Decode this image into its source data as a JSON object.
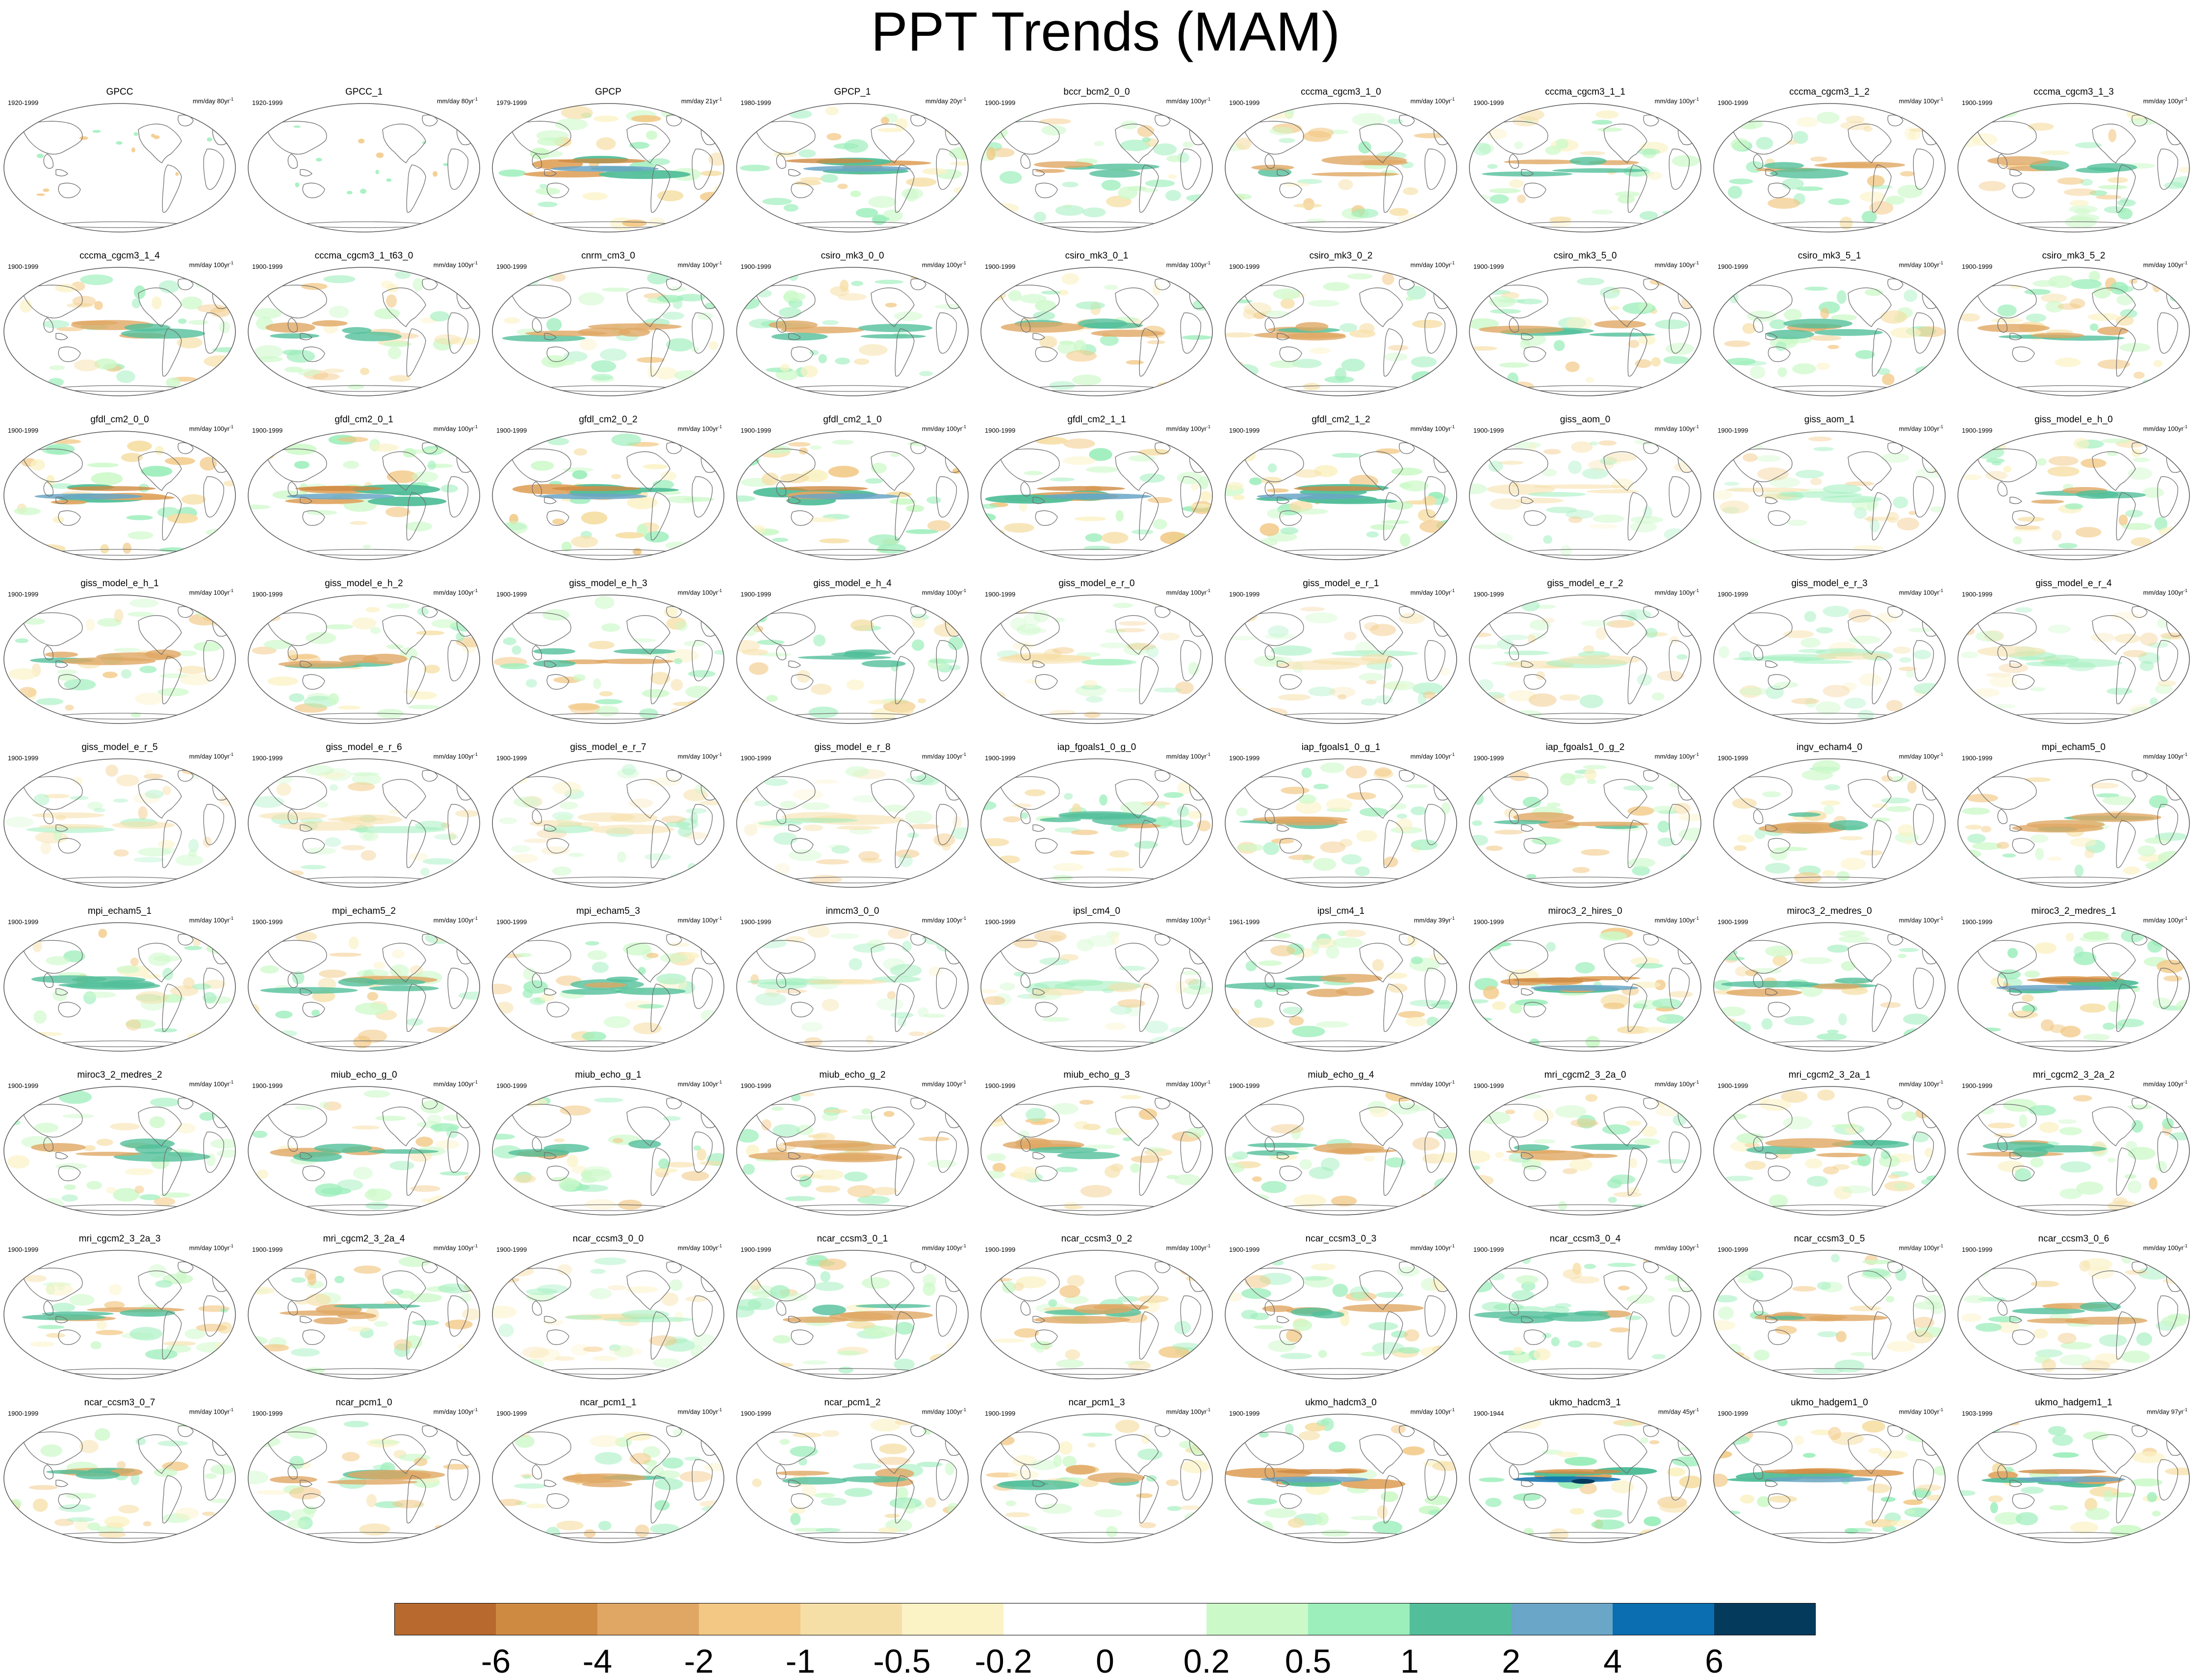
{
  "title": "PPT Trends (MAM)",
  "panels": [
    {
      "name": "GPCC",
      "period": "1920-1999",
      "units": "mm/day 80yr",
      "exp": "-1",
      "style": "sparse"
    },
    {
      "name": "GPCC_1",
      "period": "1920-1999",
      "units": "mm/day 80yr",
      "exp": "-1",
      "style": "sparse"
    },
    {
      "name": "GPCP",
      "period": "1979-1999",
      "units": "mm/day 21yr",
      "exp": "-1",
      "style": "strong"
    },
    {
      "name": "GPCP_1",
      "period": "1980-1999",
      "units": "mm/day 20yr",
      "exp": "-1",
      "style": "strong"
    },
    {
      "name": "bccr_bcm2_0_0",
      "period": "1900-1999",
      "units": "mm/day 100yr",
      "exp": "-1",
      "style": "normal"
    },
    {
      "name": "cccma_cgcm3_1_0",
      "period": "1900-1999",
      "units": "mm/day 100yr",
      "exp": "-1",
      "style": "normal"
    },
    {
      "name": "cccma_cgcm3_1_1",
      "period": "1900-1999",
      "units": "mm/day 100yr",
      "exp": "-1",
      "style": "normal"
    },
    {
      "name": "cccma_cgcm3_1_2",
      "period": "1900-1999",
      "units": "mm/day 100yr",
      "exp": "-1",
      "style": "normal"
    },
    {
      "name": "cccma_cgcm3_1_3",
      "period": "1900-1999",
      "units": "mm/day 100yr",
      "exp": "-1",
      "style": "normal"
    },
    {
      "name": "cccma_cgcm3_1_4",
      "period": "1900-1999",
      "units": "mm/day 100yr",
      "exp": "-1",
      "style": "normal"
    },
    {
      "name": "cccma_cgcm3_1_t63_0",
      "period": "1900-1999",
      "units": "mm/day 100yr",
      "exp": "-1",
      "style": "normal"
    },
    {
      "name": "cnrm_cm3_0",
      "period": "1900-1999",
      "units": "mm/day 100yr",
      "exp": "-1",
      "style": "normal"
    },
    {
      "name": "csiro_mk3_0_0",
      "period": "1900-1999",
      "units": "mm/day 100yr",
      "exp": "-1",
      "style": "normal"
    },
    {
      "name": "csiro_mk3_0_1",
      "period": "1900-1999",
      "units": "mm/day 100yr",
      "exp": "-1",
      "style": "normal"
    },
    {
      "name": "csiro_mk3_0_2",
      "period": "1900-1999",
      "units": "mm/day 100yr",
      "exp": "-1",
      "style": "normal"
    },
    {
      "name": "csiro_mk3_5_0",
      "period": "1900-1999",
      "units": "mm/day 100yr",
      "exp": "-1",
      "style": "normal"
    },
    {
      "name": "csiro_mk3_5_1",
      "period": "1900-1999",
      "units": "mm/day 100yr",
      "exp": "-1",
      "style": "normal"
    },
    {
      "name": "csiro_mk3_5_2",
      "period": "1900-1999",
      "units": "mm/day 100yr",
      "exp": "-1",
      "style": "normal"
    },
    {
      "name": "gfdl_cm2_0_0",
      "period": "1900-1999",
      "units": "mm/day 100yr",
      "exp": "-1",
      "style": "strong"
    },
    {
      "name": "gfdl_cm2_0_1",
      "period": "1900-1999",
      "units": "mm/day 100yr",
      "exp": "-1",
      "style": "strong"
    },
    {
      "name": "gfdl_cm2_0_2",
      "period": "1900-1999",
      "units": "mm/day 100yr",
      "exp": "-1",
      "style": "strong"
    },
    {
      "name": "gfdl_cm2_1_0",
      "period": "1900-1999",
      "units": "mm/day 100yr",
      "exp": "-1",
      "style": "strong"
    },
    {
      "name": "gfdl_cm2_1_1",
      "period": "1900-1999",
      "units": "mm/day 100yr",
      "exp": "-1",
      "style": "strong"
    },
    {
      "name": "gfdl_cm2_1_2",
      "period": "1900-1999",
      "units": "mm/day 100yr",
      "exp": "-1",
      "style": "strong"
    },
    {
      "name": "giss_aom_0",
      "period": "1900-1999",
      "units": "mm/day 100yr",
      "exp": "-1",
      "style": "light"
    },
    {
      "name": "giss_aom_1",
      "period": "1900-1999",
      "units": "mm/day 100yr",
      "exp": "-1",
      "style": "light"
    },
    {
      "name": "giss_model_e_h_0",
      "period": "1900-1999",
      "units": "mm/day 100yr",
      "exp": "-1",
      "style": "normal"
    },
    {
      "name": "giss_model_e_h_1",
      "period": "1900-1999",
      "units": "mm/day 100yr",
      "exp": "-1",
      "style": "normal"
    },
    {
      "name": "giss_model_e_h_2",
      "period": "1900-1999",
      "units": "mm/day 100yr",
      "exp": "-1",
      "style": "normal"
    },
    {
      "name": "giss_model_e_h_3",
      "period": "1900-1999",
      "units": "mm/day 100yr",
      "exp": "-1",
      "style": "normal"
    },
    {
      "name": "giss_model_e_h_4",
      "period": "1900-1999",
      "units": "mm/day 100yr",
      "exp": "-1",
      "style": "normal"
    },
    {
      "name": "giss_model_e_r_0",
      "period": "1900-1999",
      "units": "mm/day 100yr",
      "exp": "-1",
      "style": "light"
    },
    {
      "name": "giss_model_e_r_1",
      "period": "1900-1999",
      "units": "mm/day 100yr",
      "exp": "-1",
      "style": "light"
    },
    {
      "name": "giss_model_e_r_2",
      "period": "1900-1999",
      "units": "mm/day 100yr",
      "exp": "-1",
      "style": "light"
    },
    {
      "name": "giss_model_e_r_3",
      "period": "1900-1999",
      "units": "mm/day 100yr",
      "exp": "-1",
      "style": "light"
    },
    {
      "name": "giss_model_e_r_4",
      "period": "1900-1999",
      "units": "mm/day 100yr",
      "exp": "-1",
      "style": "light"
    },
    {
      "name": "giss_model_e_r_5",
      "period": "1900-1999",
      "units": "mm/day 100yr",
      "exp": "-1",
      "style": "light"
    },
    {
      "name": "giss_model_e_r_6",
      "period": "1900-1999",
      "units": "mm/day 100yr",
      "exp": "-1",
      "style": "light"
    },
    {
      "name": "giss_model_e_r_7",
      "period": "1900-1999",
      "units": "mm/day 100yr",
      "exp": "-1",
      "style": "light"
    },
    {
      "name": "giss_model_e_r_8",
      "period": "1900-1999",
      "units": "mm/day 100yr",
      "exp": "-1",
      "style": "light"
    },
    {
      "name": "iap_fgoals1_0_g_0",
      "period": "1900-1999",
      "units": "mm/day 100yr",
      "exp": "-1",
      "style": "normal"
    },
    {
      "name": "iap_fgoals1_0_g_1",
      "period": "1900-1999",
      "units": "mm/day 100yr",
      "exp": "-1",
      "style": "normal"
    },
    {
      "name": "iap_fgoals1_0_g_2",
      "period": "1900-1999",
      "units": "mm/day 100yr",
      "exp": "-1",
      "style": "normal"
    },
    {
      "name": "ingv_echam4_0",
      "period": "1900-1999",
      "units": "mm/day 100yr",
      "exp": "-1",
      "style": "normal"
    },
    {
      "name": "mpi_echam5_0",
      "period": "1900-1999",
      "units": "mm/day 100yr",
      "exp": "-1",
      "style": "normal"
    },
    {
      "name": "mpi_echam5_1",
      "period": "1900-1999",
      "units": "mm/day 100yr",
      "exp": "-1",
      "style": "normal"
    },
    {
      "name": "mpi_echam5_2",
      "period": "1900-1999",
      "units": "mm/day 100yr",
      "exp": "-1",
      "style": "normal"
    },
    {
      "name": "mpi_echam5_3",
      "period": "1900-1999",
      "units": "mm/day 100yr",
      "exp": "-1",
      "style": "normal"
    },
    {
      "name": "inmcm3_0_0",
      "period": "1900-1999",
      "units": "mm/day 100yr",
      "exp": "-1",
      "style": "light"
    },
    {
      "name": "ipsl_cm4_0",
      "period": "1900-1999",
      "units": "mm/day 100yr",
      "exp": "-1",
      "style": "light"
    },
    {
      "name": "ipsl_cm4_1",
      "period": "1961-1999",
      "units": "mm/day 39yr",
      "exp": "-1",
      "style": "normal"
    },
    {
      "name": "miroc3_2_hires_0",
      "period": "1900-1999",
      "units": "mm/day 100yr",
      "exp": "-1",
      "style": "strong"
    },
    {
      "name": "miroc3_2_medres_0",
      "period": "1900-1999",
      "units": "mm/day 100yr",
      "exp": "-1",
      "style": "normal"
    },
    {
      "name": "miroc3_2_medres_1",
      "period": "1900-1999",
      "units": "mm/day 100yr",
      "exp": "-1",
      "style": "strong"
    },
    {
      "name": "miroc3_2_medres_2",
      "period": "1900-1999",
      "units": "mm/day 100yr",
      "exp": "-1",
      "style": "normal"
    },
    {
      "name": "miub_echo_g_0",
      "period": "1900-1999",
      "units": "mm/day 100yr",
      "exp": "-1",
      "style": "normal"
    },
    {
      "name": "miub_echo_g_1",
      "period": "1900-1999",
      "units": "mm/day 100yr",
      "exp": "-1",
      "style": "normal"
    },
    {
      "name": "miub_echo_g_2",
      "period": "1900-1999",
      "units": "mm/day 100yr",
      "exp": "-1",
      "style": "normal"
    },
    {
      "name": "miub_echo_g_3",
      "period": "1900-1999",
      "units": "mm/day 100yr",
      "exp": "-1",
      "style": "normal"
    },
    {
      "name": "miub_echo_g_4",
      "period": "1900-1999",
      "units": "mm/day 100yr",
      "exp": "-1",
      "style": "normal"
    },
    {
      "name": "mri_cgcm2_3_2a_0",
      "period": "1900-1999",
      "units": "mm/day 100yr",
      "exp": "-1",
      "style": "normal"
    },
    {
      "name": "mri_cgcm2_3_2a_1",
      "period": "1900-1999",
      "units": "mm/day 100yr",
      "exp": "-1",
      "style": "normal"
    },
    {
      "name": "mri_cgcm2_3_2a_2",
      "period": "1900-1999",
      "units": "mm/day 100yr",
      "exp": "-1",
      "style": "normal"
    },
    {
      "name": "mri_cgcm2_3_2a_3",
      "period": "1900-1999",
      "units": "mm/day 100yr",
      "exp": "-1",
      "style": "normal"
    },
    {
      "name": "mri_cgcm2_3_2a_4",
      "period": "1900-1999",
      "units": "mm/day 100yr",
      "exp": "-1",
      "style": "normal"
    },
    {
      "name": "ncar_ccsm3_0_0",
      "period": "1900-1999",
      "units": "mm/day 100yr",
      "exp": "-1",
      "style": "light"
    },
    {
      "name": "ncar_ccsm3_0_1",
      "period": "1900-1999",
      "units": "mm/day 100yr",
      "exp": "-1",
      "style": "normal"
    },
    {
      "name": "ncar_ccsm3_0_2",
      "period": "1900-1999",
      "units": "mm/day 100yr",
      "exp": "-1",
      "style": "normal"
    },
    {
      "name": "ncar_ccsm3_0_3",
      "period": "1900-1999",
      "units": "mm/day 100yr",
      "exp": "-1",
      "style": "normal"
    },
    {
      "name": "ncar_ccsm3_0_4",
      "period": "1900-1999",
      "units": "mm/day 100yr",
      "exp": "-1",
      "style": "normal"
    },
    {
      "name": "ncar_ccsm3_0_5",
      "period": "1900-1999",
      "units": "mm/day 100yr",
      "exp": "-1",
      "style": "normal"
    },
    {
      "name": "ncar_ccsm3_0_6",
      "period": "1900-1999",
      "units": "mm/day 100yr",
      "exp": "-1",
      "style": "normal"
    },
    {
      "name": "ncar_ccsm3_0_7",
      "period": "1900-1999",
      "units": "mm/day 100yr",
      "exp": "-1",
      "style": "normal"
    },
    {
      "name": "ncar_pcm1_0",
      "period": "1900-1999",
      "units": "mm/day 100yr",
      "exp": "-1",
      "style": "normal"
    },
    {
      "name": "ncar_pcm1_1",
      "period": "1900-1999",
      "units": "mm/day 100yr",
      "exp": "-1",
      "style": "normal"
    },
    {
      "name": "ncar_pcm1_2",
      "period": "1900-1999",
      "units": "mm/day 100yr",
      "exp": "-1",
      "style": "normal"
    },
    {
      "name": "ncar_pcm1_3",
      "period": "1900-1999",
      "units": "mm/day 100yr",
      "exp": "-1",
      "style": "normal"
    },
    {
      "name": "ukmo_hadcm3_0",
      "period": "1900-1999",
      "units": "mm/day 100yr",
      "exp": "-1",
      "style": "strong"
    },
    {
      "name": "ukmo_hadcm3_1",
      "period": "1900-1944",
      "units": "mm/day 45yr",
      "exp": "-1",
      "style": "extreme"
    },
    {
      "name": "ukmo_hadgem1_0",
      "period": "1900-1999",
      "units": "mm/day 100yr",
      "exp": "-1",
      "style": "strong"
    },
    {
      "name": "ukmo_hadgem1_1",
      "period": "1903-1999",
      "units": "mm/day 97yr",
      "exp": "-1",
      "style": "strong"
    }
  ],
  "colorbar": {
    "colors": [
      "#b8692d",
      "#cf8a42",
      "#e0a764",
      "#f2c884",
      "#f6dfa6",
      "#fbf2c5",
      "#ffffff",
      "#ffffff",
      "#ccf9c8",
      "#9ceebb",
      "#53bf9a",
      "#6aa6c7",
      "#0a6eb0",
      "#043a5c"
    ],
    "labels": [
      "-6",
      "-4",
      "-2",
      "-1",
      "-0.5",
      "-0.2",
      "0",
      "0.2",
      "0.5",
      "1",
      "2",
      "4",
      "6"
    ]
  }
}
